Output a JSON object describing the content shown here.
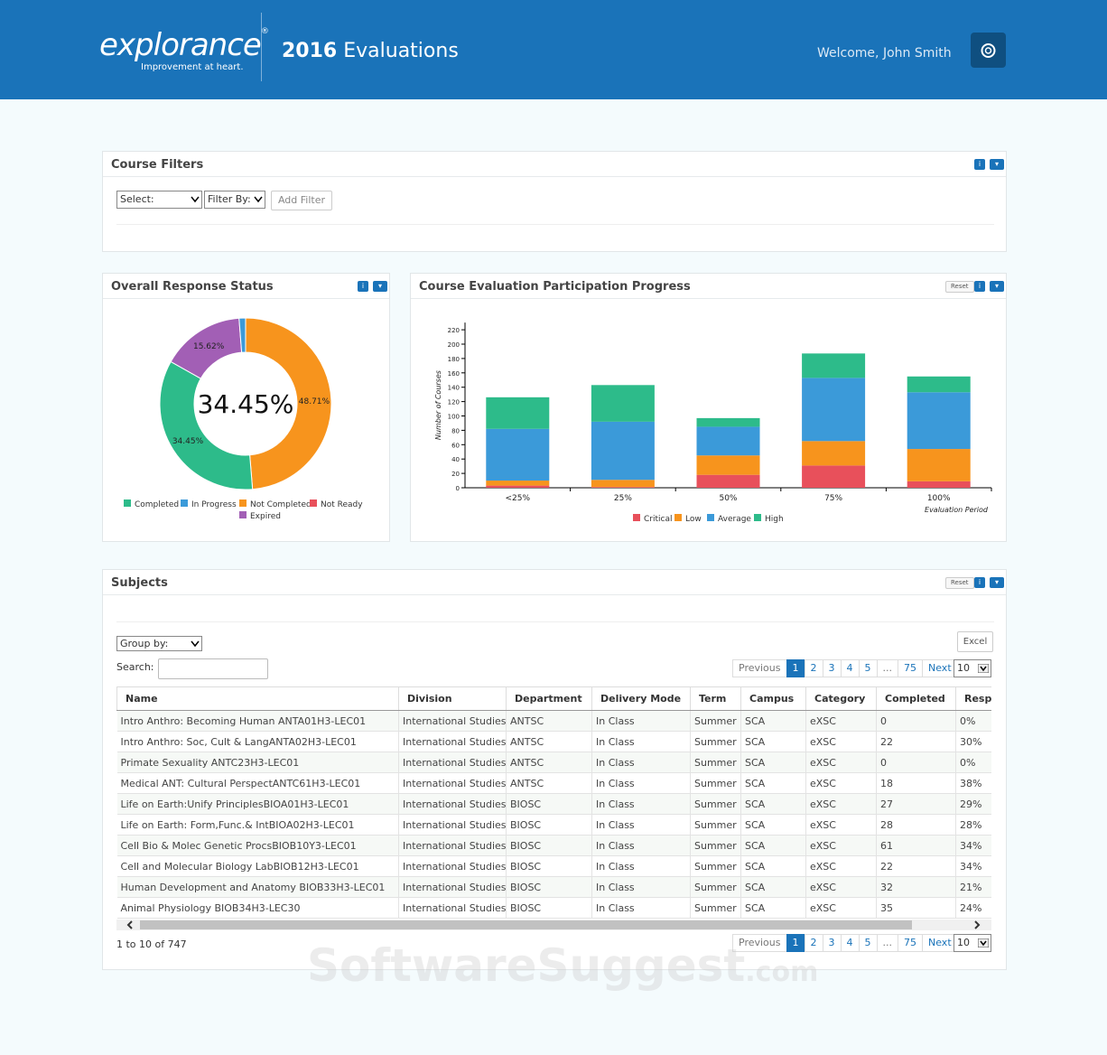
{
  "header": {
    "logo": "explorance",
    "logo_mark": "®",
    "tagline": "Improvement at heart.",
    "title_year": "2016",
    "title": "Evaluations",
    "welcome": "Welcome, John Smith"
  },
  "course_filters": {
    "title": "Course Filters",
    "select": "Select:",
    "filter_by": "Filter By:",
    "add_filter": "Add Filter"
  },
  "chart_data": [
    {
      "type": "donut",
      "title": "Overall Response Status",
      "center_label": "34.45%",
      "categories": [
        "Completed",
        "In Progress",
        "Not Completed",
        "Not Ready",
        "Expired"
      ],
      "values": [
        34.45,
        1.22,
        48.71,
        0,
        15.62
      ],
      "value_labels": [
        "34.45%",
        null,
        "48.71%",
        null,
        "15.62%"
      ],
      "colors": [
        "#2dbb8a",
        "#3b9ad9",
        "#f7941d",
        "#e8505b",
        "#a25fb5"
      ]
    },
    {
      "type": "bar",
      "stacked": true,
      "title": "Course Evaluation Participation Progress",
      "reset": "Reset",
      "x_label": "Evaluation Period",
      "y_label": "Number of Courses",
      "categories": [
        "<25%",
        "25%",
        "50%",
        "75%",
        "100%"
      ],
      "series": [
        {
          "name": "Critical",
          "color": "#e8505b",
          "values": [
            3,
            1,
            18,
            31,
            9
          ]
        },
        {
          "name": "Low",
          "color": "#f7941d",
          "values": [
            7,
            10,
            27,
            34,
            45
          ]
        },
        {
          "name": "Average",
          "color": "#3b9ad9",
          "values": [
            72,
            81,
            40,
            88,
            79
          ]
        },
        {
          "name": "High",
          "color": "#2dbb8a",
          "values": [
            44,
            51,
            12,
            34,
            22
          ]
        }
      ],
      "ylim": [
        0,
        230
      ],
      "yticks": [
        0,
        20,
        40,
        60,
        80,
        100,
        120,
        140,
        160,
        180,
        200,
        220
      ]
    }
  ],
  "subjects": {
    "title": "Subjects",
    "reset": "Reset",
    "group_by": "Group by:",
    "search": "Search:",
    "excel": "Excel",
    "pagination": [
      "Previous",
      "1",
      "2",
      "3",
      "4",
      "5",
      "...",
      "75",
      "Next"
    ],
    "page_size": "10",
    "columns": [
      "Name",
      "Division",
      "Department",
      "Delivery Mode",
      "Term",
      "Campus",
      "Category",
      "Completed",
      "Respo"
    ],
    "rows": [
      [
        "Intro Anthro: Becoming Human ANTA01H3-LEC01",
        "International Studies",
        "ANTSC",
        "In Class",
        "Summer",
        "SCA",
        "eXSC",
        "0",
        "0%"
      ],
      [
        "Intro Anthro: Soc, Cult & LangANTA02H3-LEC01",
        "International Studies",
        "ANTSC",
        "In Class",
        "Summer",
        "SCA",
        "eXSC",
        "22",
        "30%"
      ],
      [
        "Primate Sexuality ANTC23H3-LEC01",
        "International Studies",
        "ANTSC",
        "In Class",
        "Summer",
        "SCA",
        "eXSC",
        "0",
        "0%"
      ],
      [
        "Medical ANT: Cultural PerspectANTC61H3-LEC01",
        "International Studies",
        "ANTSC",
        "In Class",
        "Summer",
        "SCA",
        "eXSC",
        "18",
        "38%"
      ],
      [
        "Life on Earth:Unify PrinciplesBIOA01H3-LEC01",
        "International Studies",
        "BIOSC",
        "In Class",
        "Summer",
        "SCA",
        "eXSC",
        "27",
        "29%"
      ],
      [
        "Life on Earth: Form,Func.& IntBIOA02H3-LEC01",
        "International Studies",
        "BIOSC",
        "In Class",
        "Summer",
        "SCA",
        "eXSC",
        "28",
        "28%"
      ],
      [
        "Cell Bio & Molec Genetic ProcsBIOB10Y3-LEC01",
        "International Studies",
        "BIOSC",
        "In Class",
        "Summer",
        "SCA",
        "eXSC",
        "61",
        "34%"
      ],
      [
        "Cell and Molecular Biology LabBIOB12H3-LEC01",
        "International Studies",
        "BIOSC",
        "In Class",
        "Summer",
        "SCA",
        "eXSC",
        "22",
        "34%"
      ],
      [
        "Human Development and Anatomy BIOB33H3-LEC01",
        "International Studies",
        "BIOSC",
        "In Class",
        "Summer",
        "SCA",
        "eXSC",
        "32",
        "21%"
      ],
      [
        "Animal Physiology BIOB34H3-LEC30",
        "International Studies",
        "BIOSC",
        "In Class",
        "Summer",
        "SCA",
        "eXSC",
        "35",
        "24%"
      ]
    ],
    "info": "1 to 10 of 747"
  },
  "watermark": {
    "main": "SoftwareSuggest",
    "suffix": ".com"
  }
}
